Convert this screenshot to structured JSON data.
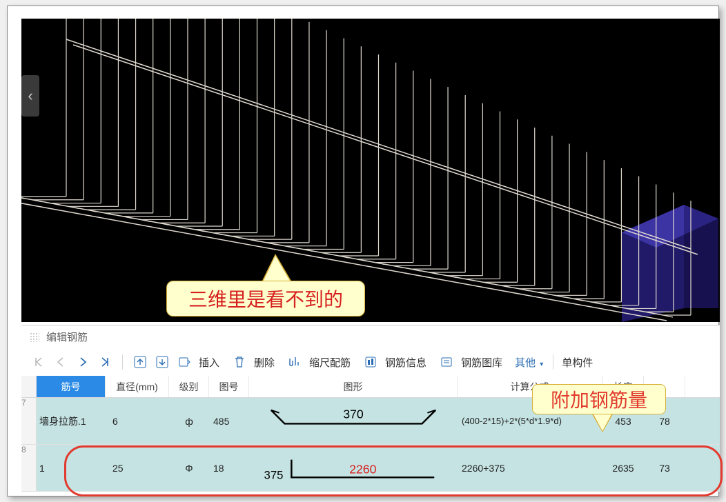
{
  "panel": {
    "title": "编辑钢筋"
  },
  "toolbar": {
    "insert": "插入",
    "delete": "删除",
    "scale": "缩尺配筋",
    "info": "钢筋信息",
    "library": "钢筋图库",
    "other": "其他",
    "single": "单构件"
  },
  "columns": {
    "name": "筋号",
    "diameter": "直径(mm)",
    "level": "级别",
    "shape_no": "图号",
    "shape": "图形",
    "formula": "计算公式",
    "length": "长度",
    "qty": ""
  },
  "rows": [
    {
      "idx": "7",
      "name": "墙身拉筋.1",
      "diameter": "6",
      "level": "ф",
      "shape_no": "485",
      "shape_label": "370",
      "shape_type": "hook",
      "shape_color": "#000000",
      "formula": "(400-2*15)+2*(5*d*1.9*d)",
      "length": "453",
      "qty": "78"
    },
    {
      "idx": "8",
      "name": "1",
      "diameter": "25",
      "level": "Φ",
      "shape_no": "18",
      "shape_prefix": "375",
      "shape_label": "2260",
      "shape_type": "L",
      "shape_color": "#d62020",
      "formula": "2260+375",
      "length": "2635",
      "qty": "73"
    }
  ],
  "callouts": {
    "c1": "三维里是看不到的",
    "c2": "附加钢筋量"
  },
  "viewport": {
    "bg": "#000000",
    "rebar_color": "#e0dad0",
    "block_fill": "#3b2fbf",
    "block_opacity": 0.55
  }
}
